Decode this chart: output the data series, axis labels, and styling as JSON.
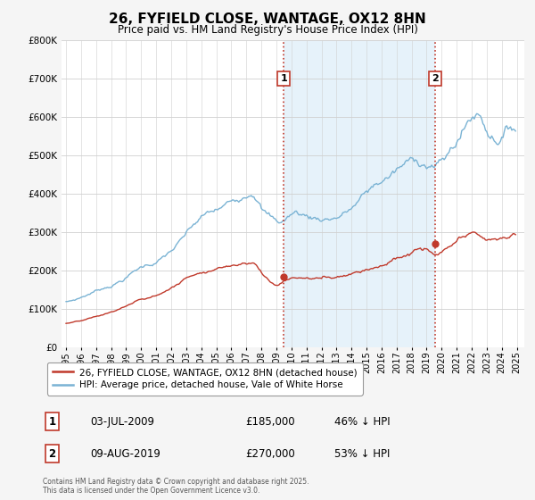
{
  "title": "26, FYFIELD CLOSE, WANTAGE, OX12 8HN",
  "subtitle": "Price paid vs. HM Land Registry's House Price Index (HPI)",
  "hpi_color": "#7ab3d4",
  "hpi_fill_color": "#d6eaf8",
  "price_color": "#c0392b",
  "vline_color": "#c0392b",
  "background_color": "#f5f5f5",
  "plot_bg_color": "#ffffff",
  "ylim": [
    0,
    800000
  ],
  "yticks": [
    0,
    100000,
    200000,
    300000,
    400000,
    500000,
    600000,
    700000,
    800000
  ],
  "ytick_labels": [
    "£0",
    "£100K",
    "£200K",
    "£300K",
    "£400K",
    "£500K",
    "£600K",
    "£700K",
    "£800K"
  ],
  "xlim_start": 1994.7,
  "xlim_end": 2025.5,
  "xticks": [
    1995,
    1996,
    1997,
    1998,
    1999,
    2000,
    2001,
    2002,
    2003,
    2004,
    2005,
    2006,
    2007,
    2008,
    2009,
    2010,
    2011,
    2012,
    2013,
    2014,
    2015,
    2016,
    2017,
    2018,
    2019,
    2020,
    2021,
    2022,
    2023,
    2024,
    2025
  ],
  "transaction1_date": 2009.5,
  "transaction1_price": 185000,
  "transaction1_label": "1",
  "transaction2_date": 2019.58,
  "transaction2_price": 270000,
  "transaction2_label": "2",
  "legend_line1": "26, FYFIELD CLOSE, WANTAGE, OX12 8HN (detached house)",
  "legend_line2": "HPI: Average price, detached house, Vale of White Horse",
  "table_row1": [
    "1",
    "03-JUL-2009",
    "£185,000",
    "46% ↓ HPI"
  ],
  "table_row2": [
    "2",
    "09-AUG-2019",
    "£270,000",
    "53% ↓ HPI"
  ],
  "footer": "Contains HM Land Registry data © Crown copyright and database right 2025.\nThis data is licensed under the Open Government Licence v3.0."
}
